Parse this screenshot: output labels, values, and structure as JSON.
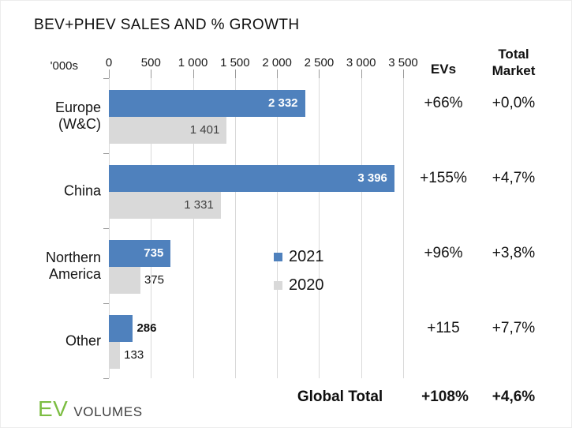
{
  "title": "BEV+PHEV SALES AND % GROWTH",
  "axis": {
    "unit_label": "'000s",
    "ticks": [
      "0",
      "500",
      "1 000",
      "1 500",
      "2 000",
      "2 500",
      "3 000",
      "3 500"
    ]
  },
  "columns": {
    "evs": "EVs",
    "total_market_line1": "Total",
    "total_market_line2": "Market"
  },
  "colors": {
    "bar_2021": "#4f81bd",
    "bar_2020": "#d9d9d9",
    "label_on_blue": "#ffffff",
    "label_on_gray": "#404040",
    "logo_green": "#7cbd42"
  },
  "chart_data": {
    "type": "bar",
    "orientation": "horizontal",
    "title": "BEV+PHEV SALES AND % GROWTH",
    "unit": "'000s",
    "categories": [
      "Europe (W&C)",
      "China",
      "Northern America",
      "Other"
    ],
    "categories_display": [
      [
        "Europe",
        "(W&C)"
      ],
      [
        "China"
      ],
      [
        "Northern",
        "America"
      ],
      [
        "Other"
      ]
    ],
    "series": [
      {
        "name": "2021",
        "values": [
          2332,
          3396,
          735,
          286
        ],
        "labels": [
          "2 332",
          "3 396",
          "735",
          "286"
        ]
      },
      {
        "name": "2020",
        "values": [
          1401,
          1331,
          375,
          133
        ],
        "labels": [
          "1 401",
          "1 331",
          "375",
          "133"
        ]
      }
    ],
    "xlim": [
      0,
      3500
    ],
    "x_ticks": [
      0,
      500,
      1000,
      1500,
      2000,
      2500,
      3000,
      3500
    ],
    "grid": true,
    "legend_position": "center-of-plot",
    "growth": {
      "evs": [
        "+66%",
        "+155%",
        "+96%",
        "+115"
      ],
      "total_market": [
        "+0,0%",
        "+4,7%",
        "+3,8%",
        "+7,7%"
      ]
    },
    "global_total": {
      "label": "Global Total",
      "evs": "+108%",
      "total_market": "+4,6%"
    }
  },
  "logo": {
    "ev": "EV",
    "volumes": "VOLUMES"
  }
}
